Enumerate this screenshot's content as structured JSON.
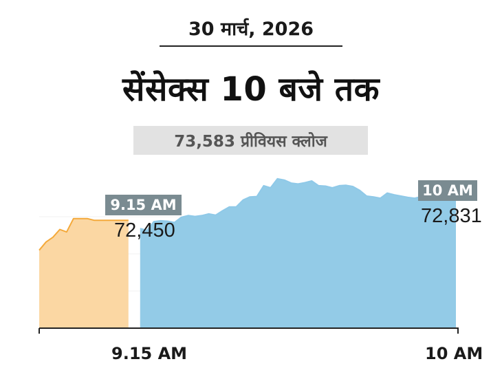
{
  "header": {
    "date": "30 मार्च, 2026",
    "title": "सेंसेक्स 10 बजे तक",
    "previous_close": "73,583 प्रीवियस क्लोज"
  },
  "chart_data": {
    "type": "area",
    "title": "सेंसेक्स 10 बजे तक",
    "previous_close": 73583,
    "ylim": [
      71300,
      73500
    ],
    "x_labels": [
      "9.15 AM",
      "10 AM"
    ],
    "annotations": [
      {
        "time": "9.15 AM",
        "value": 72450,
        "value_label": "72,450"
      },
      {
        "time": "10 AM",
        "value": 72831,
        "value_label": "72,831"
      }
    ],
    "series": [
      {
        "segment": "pre-open",
        "color": "#f4a93a",
        "fill": "#fbd7a3",
        "values": [
          72200,
          72295,
          72350,
          72440,
          72410,
          72565,
          72565,
          72565,
          72545,
          72545,
          72545,
          72545,
          72545,
          72545
        ]
      },
      {
        "segment": "market",
        "color": "#8fc9e8",
        "fill": "#93cbe7",
        "x_start": 14.7,
        "values": [
          72450,
          72430,
          72530,
          72540,
          72535,
          72520,
          72580,
          72600,
          72590,
          72600,
          72620,
          72605,
          72655,
          72700,
          72700,
          72780,
          72815,
          72820,
          72945,
          72920,
          73025,
          73010,
          72975,
          72965,
          72980,
          73000,
          72945,
          72940,
          72920,
          72945,
          72950,
          72935,
          72890,
          72825,
          72815,
          72800,
          72860,
          72840,
          72825,
          72810,
          72800,
          72820,
          72810,
          72790,
          72820,
          72830,
          72831
        ]
      }
    ]
  }
}
